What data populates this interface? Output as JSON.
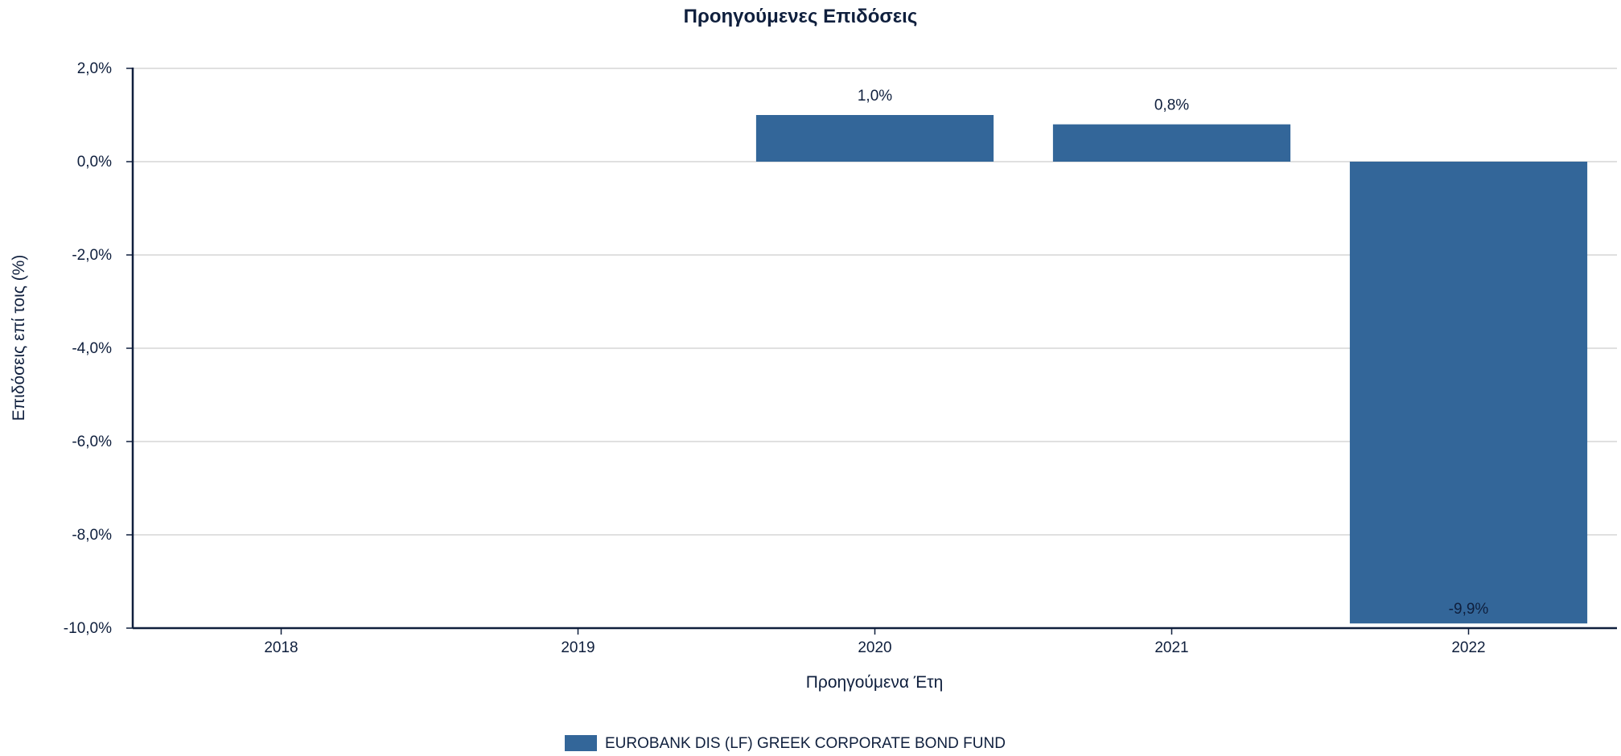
{
  "chart_data": {
    "type": "bar",
    "title": "Προηγούμενες Επιδόσεις",
    "xlabel": "Προηγούμενα Έτη",
    "ylabel": "Επιδόσεις επί τοις (%)",
    "categories": [
      "2018",
      "2019",
      "2020",
      "2021",
      "2022"
    ],
    "series": [
      {
        "name": "EUROBANK DIS (LF) GREEK CORPORATE BOND FUND",
        "values": [
          null,
          null,
          1.0,
          0.8,
          -9.9
        ],
        "labels": [
          "",
          "",
          "1,0%",
          "0,8%",
          "-9,9%"
        ],
        "color": "#336699"
      }
    ],
    "ylim": [
      -10,
      2
    ],
    "yticks": [
      2,
      0,
      -2,
      -4,
      -6,
      -8,
      -10
    ],
    "ytick_labels": [
      "2,0%",
      "0,0%",
      "-2,0%",
      "-4,0%",
      "-6,0%",
      "-8,0%",
      "-10,0%"
    ],
    "grid": true,
    "legend": "bottom-center"
  }
}
